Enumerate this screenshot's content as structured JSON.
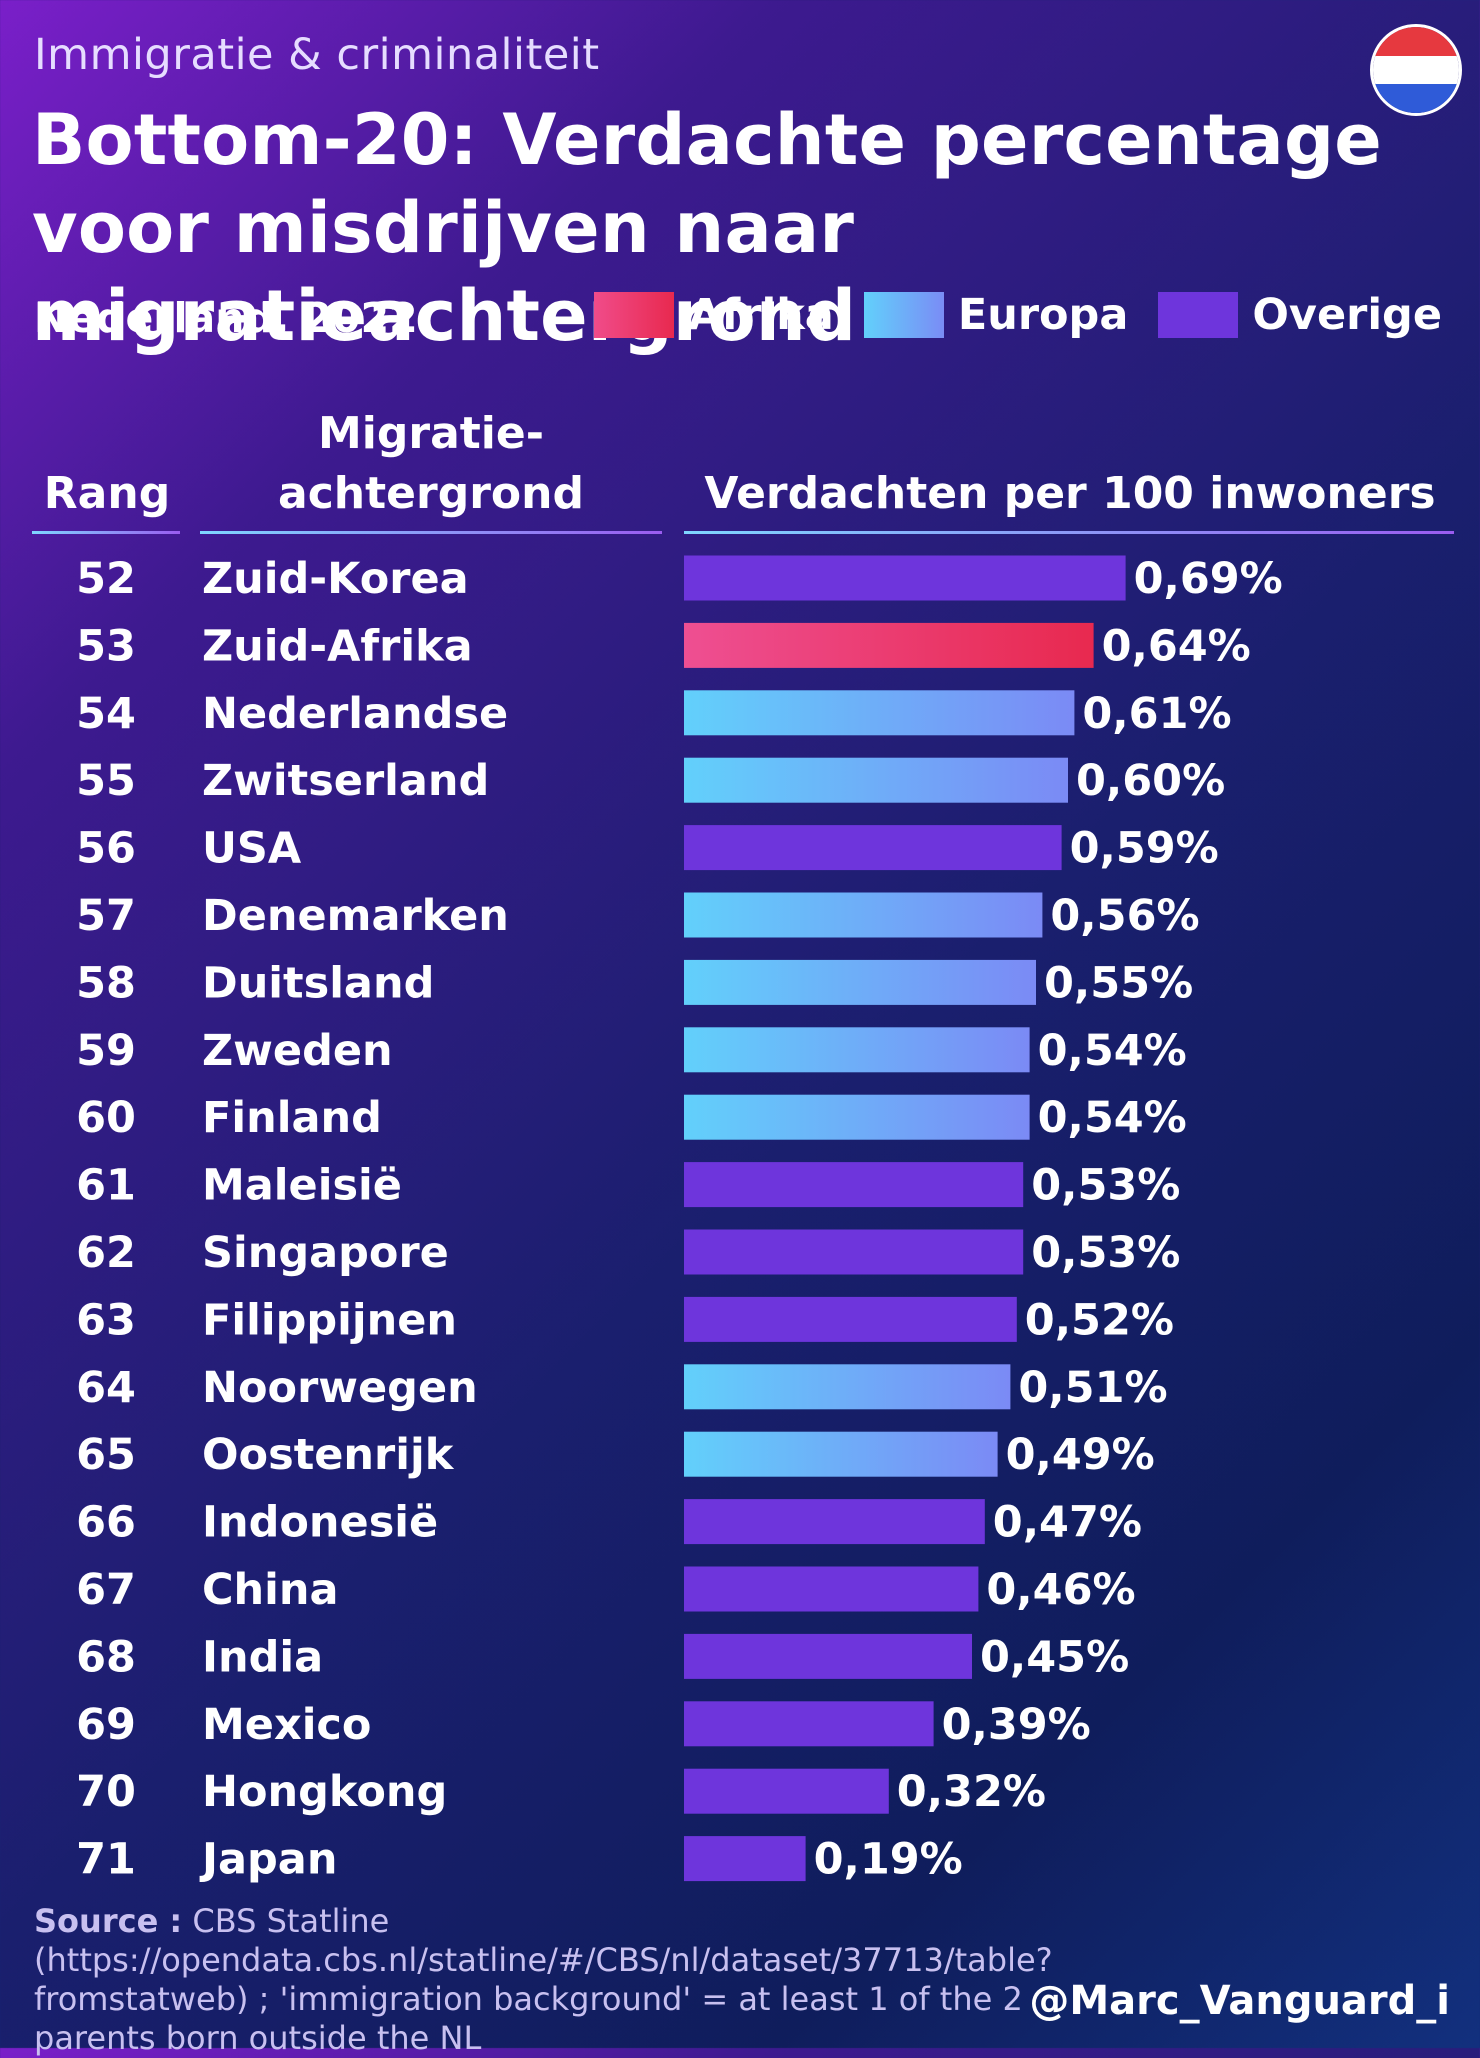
{
  "header": {
    "kicker": "Immigratie & criminaliteit",
    "title": "Bottom-20: Verdachte percentage voor misdrijven naar migratieachtergrond",
    "region": "Nederland, 2022"
  },
  "legend": [
    {
      "label": "Afrika",
      "color": "#e8336b"
    },
    {
      "label": "Europa",
      "color": "#6aa6f8"
    },
    {
      "label": "Overige",
      "color": "#6e35dc"
    }
  ],
  "columns": {
    "rank": "Rang",
    "origin_line1": "Migratie-",
    "origin_line2": "achtergrond",
    "value": "Verdachten per 100 inwoners"
  },
  "chart_data": {
    "type": "bar",
    "orientation": "horizontal",
    "unit": "%",
    "xlim": [
      0,
      1.0
    ],
    "rows": [
      {
        "rank": 52,
        "category": "Zuid-Korea",
        "value": 0.69,
        "label": "0,69%",
        "group": "Overige"
      },
      {
        "rank": 53,
        "category": "Zuid-Afrika",
        "value": 0.64,
        "label": "0,64%",
        "group": "Afrika"
      },
      {
        "rank": 54,
        "category": "Nederlandse",
        "value": 0.61,
        "label": "0,61%",
        "group": "Europa"
      },
      {
        "rank": 55,
        "category": "Zwitserland",
        "value": 0.6,
        "label": "0,60%",
        "group": "Europa"
      },
      {
        "rank": 56,
        "category": "USA",
        "value": 0.59,
        "label": "0,59%",
        "group": "Overige"
      },
      {
        "rank": 57,
        "category": "Denemarken",
        "value": 0.56,
        "label": "0,56%",
        "group": "Europa"
      },
      {
        "rank": 58,
        "category": "Duitsland",
        "value": 0.55,
        "label": "0,55%",
        "group": "Europa"
      },
      {
        "rank": 59,
        "category": "Zweden",
        "value": 0.54,
        "label": "0,54%",
        "group": "Europa"
      },
      {
        "rank": 60,
        "category": "Finland",
        "value": 0.54,
        "label": "0,54%",
        "group": "Europa"
      },
      {
        "rank": 61,
        "category": "Maleisië",
        "value": 0.53,
        "label": "0,53%",
        "group": "Overige"
      },
      {
        "rank": 62,
        "category": "Singapore",
        "value": 0.53,
        "label": "0,53%",
        "group": "Overige"
      },
      {
        "rank": 63,
        "category": "Filippijnen",
        "value": 0.52,
        "label": "0,52%",
        "group": "Overige"
      },
      {
        "rank": 64,
        "category": "Noorwegen",
        "value": 0.51,
        "label": "0,51%",
        "group": "Europa"
      },
      {
        "rank": 65,
        "category": "Oostenrijk",
        "value": 0.49,
        "label": "0,49%",
        "group": "Europa"
      },
      {
        "rank": 66,
        "category": "Indonesië",
        "value": 0.47,
        "label": "0,47%",
        "group": "Overige"
      },
      {
        "rank": 67,
        "category": "China",
        "value": 0.46,
        "label": "0,46%",
        "group": "Overige"
      },
      {
        "rank": 68,
        "category": "India",
        "value": 0.45,
        "label": "0,45%",
        "group": "Overige"
      },
      {
        "rank": 69,
        "category": "Mexico",
        "value": 0.39,
        "label": "0,39%",
        "group": "Overige"
      },
      {
        "rank": 70,
        "category": "Hongkong",
        "value": 0.32,
        "label": "0,32%",
        "group": "Overige"
      },
      {
        "rank": 71,
        "category": "Japan",
        "value": 0.19,
        "label": "0,19%",
        "group": "Overige"
      }
    ]
  },
  "footer": {
    "source_label": "Source :",
    "source_text": "CBS Statline (https://opendata.cbs.nl/statline/#/CBS/nl/dataset/37713/table?fromstatweb) ; 'immigration background' = at least 1 of the 2 parents born outside the NL",
    "handle": "@Marc_Vanguard_i"
  },
  "flag_colors": [
    "#e6393f",
    "#ffffff",
    "#2f5bd8"
  ]
}
